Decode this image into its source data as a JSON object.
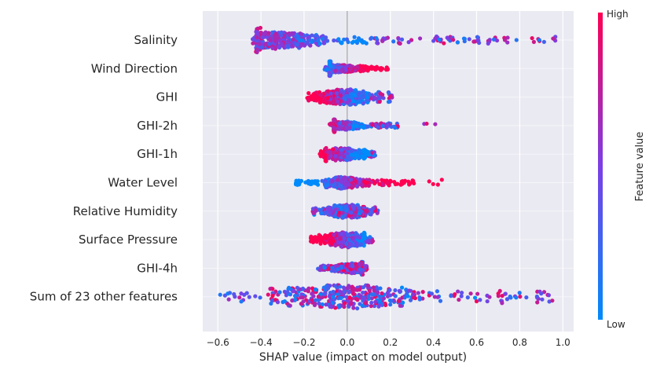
{
  "chart_data": {
    "type": "scatter",
    "subtype": "shap-beeswarm",
    "title": "",
    "xlabel": "SHAP value (impact on model output)",
    "ylabel": "",
    "xlim": [
      -0.67,
      1.05
    ],
    "xticks": [
      -0.6,
      -0.4,
      -0.2,
      0.0,
      0.2,
      0.4,
      0.6,
      0.8,
      1.0
    ],
    "xtick_labels": [
      "−0.6",
      "−0.4",
      "−0.2",
      "0.0",
      "0.2",
      "0.4",
      "0.6",
      "0.8",
      "1.0"
    ],
    "features": [
      {
        "name": "Salinity",
        "min": -0.45,
        "max": 0.97,
        "core_lo": -0.42,
        "core_hi": 0.1,
        "mode": -0.32,
        "spread": 0.1,
        "width": 1.0,
        "high_side": "negative",
        "outliers": []
      },
      {
        "name": "Wind Direction",
        "min": -0.11,
        "max": 0.2,
        "core_lo": -0.08,
        "core_hi": 0.12,
        "mode": -0.04,
        "spread": 0.05,
        "width": 0.55,
        "high_side": "positive",
        "outliers": []
      },
      {
        "name": "GHI",
        "min": -0.19,
        "max": 0.21,
        "core_lo": -0.15,
        "core_hi": 0.1,
        "mode": -0.02,
        "spread": 0.06,
        "width": 0.6,
        "high_side": "negative",
        "outliers": []
      },
      {
        "name": "GHI-2h",
        "min": -0.08,
        "max": 0.24,
        "core_lo": -0.06,
        "core_hi": 0.08,
        "mode": -0.02,
        "spread": 0.04,
        "width": 0.5,
        "high_side": "negative",
        "outliers": [
          0.36,
          0.37,
          0.41
        ]
      },
      {
        "name": "GHI-1h",
        "min": -0.13,
        "max": 0.13,
        "core_lo": -0.1,
        "core_hi": 0.1,
        "mode": -0.02,
        "spread": 0.05,
        "width": 0.55,
        "high_side": "negative",
        "outliers": []
      },
      {
        "name": "Water Level",
        "min": -0.25,
        "max": 0.31,
        "core_lo": -0.1,
        "core_hi": 0.1,
        "mode": -0.01,
        "spread": 0.05,
        "width": 0.45,
        "high_side": "positive",
        "outliers": [
          -0.24,
          -0.22,
          -0.16,
          0.38,
          0.4,
          0.42,
          0.44
        ]
      },
      {
        "name": "Relative Humidity",
        "min": -0.16,
        "max": 0.14,
        "core_lo": -0.12,
        "core_hi": 0.12,
        "mode": 0.0,
        "spread": 0.05,
        "width": 0.5,
        "high_side": "mixed",
        "outliers": []
      },
      {
        "name": "Surface Pressure",
        "min": -0.17,
        "max": 0.12,
        "core_lo": -0.14,
        "core_hi": 0.08,
        "mode": 0.0,
        "spread": 0.05,
        "width": 0.6,
        "high_side": "negative",
        "outliers": []
      },
      {
        "name": "GHI-4h",
        "min": -0.14,
        "max": 0.09,
        "core_lo": -0.1,
        "core_hi": 0.07,
        "mode": 0.02,
        "spread": 0.04,
        "width": 0.5,
        "high_side": "mixed",
        "outliers": []
      },
      {
        "name": "Sum of 23 other features",
        "min": -0.59,
        "max": 0.95,
        "core_lo": -0.35,
        "core_hi": 0.55,
        "mode": 0.0,
        "spread": 0.16,
        "width": 0.95,
        "high_side": "mixed",
        "outliers": [
          -0.59,
          -0.55,
          -0.5,
          0.7,
          0.76,
          0.8,
          0.83,
          0.9,
          0.95
        ]
      }
    ],
    "colorbar": {
      "title": "Feature value",
      "high_label": "High",
      "low_label": "Low",
      "high_color": "#ff0052",
      "mid_color": "#7c3ee6",
      "low_color": "#008bfb"
    },
    "colors": {
      "plot_background": "#eaeaf2",
      "grid": "#ffffff",
      "zero_line": "#999999"
    }
  }
}
